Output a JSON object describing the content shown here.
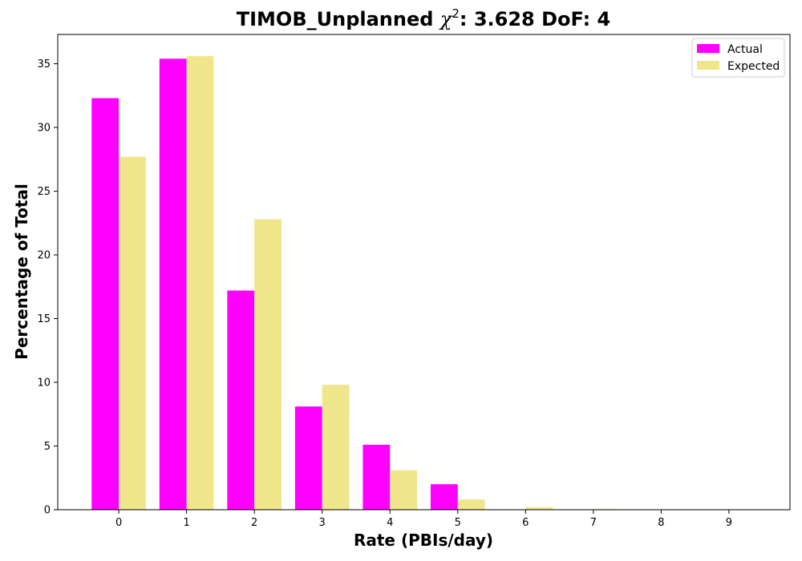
{
  "chart_data": {
    "type": "bar",
    "title": "TIMOB_Unplanned χ²: 3.628 DoF: 4",
    "title_parts": {
      "prefix": "TIMOB_Unplanned ",
      "chi_symbol": "χ",
      "chi_exponent": "2",
      "suffix": ": 3.628 DoF: 4"
    },
    "xlabel": "Rate (PBIs/day)",
    "ylabel": "Percentage of Total",
    "categories": [
      "0",
      "1",
      "2",
      "3",
      "4",
      "5",
      "6",
      "7",
      "8",
      "9"
    ],
    "xlim": [
      -0.9,
      9.9
    ],
    "ylim": [
      0,
      37.3
    ],
    "yticks": [
      0,
      5,
      10,
      15,
      20,
      25,
      30,
      35
    ],
    "grid": false,
    "legend_position": "top-right",
    "series": [
      {
        "name": "Actual",
        "color": "#ff00ff",
        "values": [
          32.3,
          35.4,
          17.2,
          8.1,
          5.1,
          2.0,
          0,
          0,
          0,
          0
        ]
      },
      {
        "name": "Expected",
        "color": "#f0e68c",
        "values": [
          27.7,
          35.6,
          22.8,
          9.8,
          3.1,
          0.8,
          0.2,
          0.05,
          0.01,
          0.0
        ]
      }
    ]
  }
}
